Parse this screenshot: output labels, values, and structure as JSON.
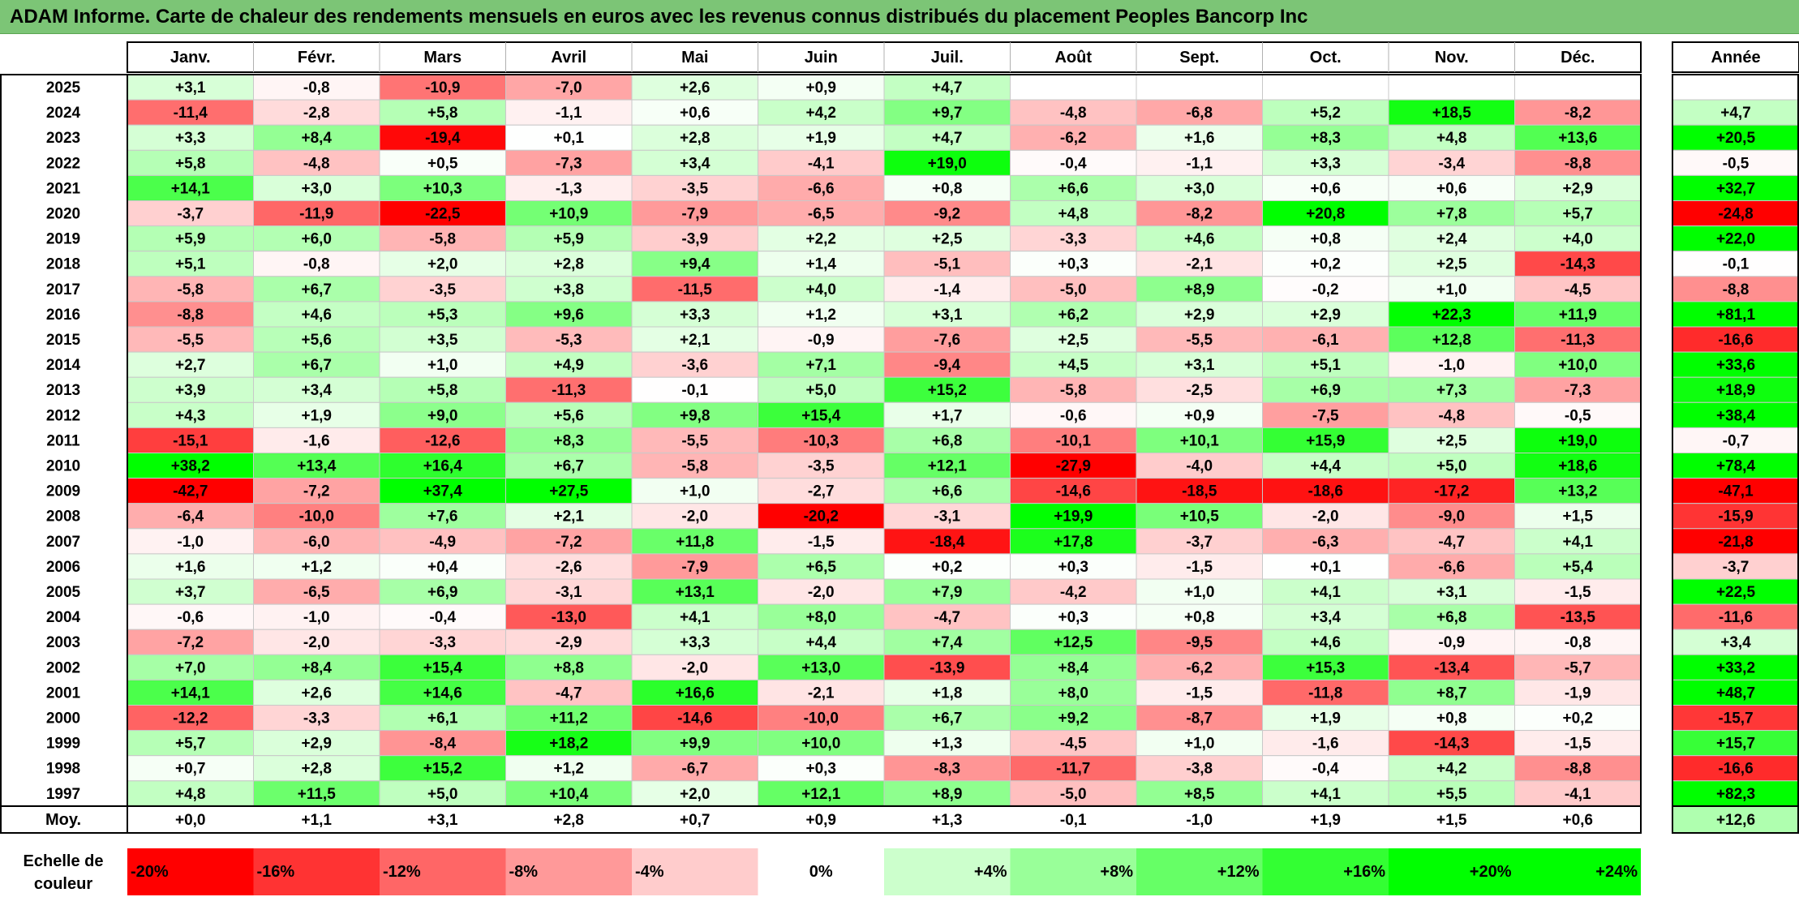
{
  "title": "ADAM Informe. Carte de chaleur des rendements mensuels en euros avec les revenus connus distribués du placement Peoples Bancorp Inc",
  "chart_data": {
    "type": "heatmap",
    "title": "ADAM Informe. Carte de chaleur des rendements mensuels en euros avec les revenus connus distribués du placement Peoples Bancorp Inc",
    "columns": [
      "Janv.",
      "Févr.",
      "Mars",
      "Avril",
      "Mai",
      "Juin",
      "Juil.",
      "Août",
      "Sept.",
      "Oct.",
      "Nov.",
      "Déc."
    ],
    "year_column_label": "Année",
    "rows": [
      {
        "year": "2025",
        "months": [
          "+3,1",
          "-0,8",
          "-10,9",
          "-7,0",
          "+2,6",
          "+0,9",
          "+4,7",
          "",
          "",
          "",
          "",
          ""
        ],
        "annual": ""
      },
      {
        "year": "2024",
        "months": [
          "-11,4",
          "-2,8",
          "+5,8",
          "-1,1",
          "+0,6",
          "+4,2",
          "+9,7",
          "-4,8",
          "-6,8",
          "+5,2",
          "+18,5",
          "-8,2"
        ],
        "annual": "+4,7"
      },
      {
        "year": "2023",
        "months": [
          "+3,3",
          "+8,4",
          "-19,4",
          "+0,1",
          "+2,8",
          "+1,9",
          "+4,7",
          "-6,2",
          "+1,6",
          "+8,3",
          "+4,8",
          "+13,6"
        ],
        "annual": "+20,5"
      },
      {
        "year": "2022",
        "months": [
          "+5,8",
          "-4,8",
          "+0,5",
          "-7,3",
          "+3,4",
          "-4,1",
          "+19,0",
          "-0,4",
          "-1,1",
          "+3,3",
          "-3,4",
          "-8,8"
        ],
        "annual": "-0,5"
      },
      {
        "year": "2021",
        "months": [
          "+14,1",
          "+3,0",
          "+10,3",
          "-1,3",
          "-3,5",
          "-6,6",
          "+0,8",
          "+6,6",
          "+3,0",
          "+0,6",
          "+0,6",
          "+2,9"
        ],
        "annual": "+32,7"
      },
      {
        "year": "2020",
        "months": [
          "-3,7",
          "-11,9",
          "-22,5",
          "+10,9",
          "-7,9",
          "-6,5",
          "-9,2",
          "+4,8",
          "-8,2",
          "+20,8",
          "+7,8",
          "+5,7"
        ],
        "annual": "-24,8"
      },
      {
        "year": "2019",
        "months": [
          "+5,9",
          "+6,0",
          "-5,8",
          "+5,9",
          "-3,9",
          "+2,2",
          "+2,5",
          "-3,3",
          "+4,6",
          "+0,8",
          "+2,4",
          "+4,0"
        ],
        "annual": "+22,0"
      },
      {
        "year": "2018",
        "months": [
          "+5,1",
          "-0,8",
          "+2,0",
          "+2,8",
          "+9,4",
          "+1,4",
          "-5,1",
          "+0,3",
          "-2,1",
          "+0,2",
          "+2,5",
          "-14,3"
        ],
        "annual": "-0,1"
      },
      {
        "year": "2017",
        "months": [
          "-5,8",
          "+6,7",
          "-3,5",
          "+3,8",
          "-11,5",
          "+4,0",
          "-1,4",
          "-5,0",
          "+8,9",
          "-0,2",
          "+1,0",
          "-4,5"
        ],
        "annual": "-8,8"
      },
      {
        "year": "2016",
        "months": [
          "-8,8",
          "+4,6",
          "+5,3",
          "+9,6",
          "+3,3",
          "+1,2",
          "+3,1",
          "+6,2",
          "+2,9",
          "+2,9",
          "+22,3",
          "+11,9"
        ],
        "annual": "+81,1"
      },
      {
        "year": "2015",
        "months": [
          "-5,5",
          "+5,6",
          "+3,5",
          "-5,3",
          "+2,1",
          "-0,9",
          "-7,6",
          "+2,5",
          "-5,5",
          "-6,1",
          "+12,8",
          "-11,3"
        ],
        "annual": "-16,6"
      },
      {
        "year": "2014",
        "months": [
          "+2,7",
          "+6,7",
          "+1,0",
          "+4,9",
          "-3,6",
          "+7,1",
          "-9,4",
          "+4,5",
          "+3,1",
          "+5,1",
          "-1,0",
          "+10,0"
        ],
        "annual": "+33,6"
      },
      {
        "year": "2013",
        "months": [
          "+3,9",
          "+3,4",
          "+5,8",
          "-11,3",
          "-0,1",
          "+5,0",
          "+15,2",
          "-5,8",
          "-2,5",
          "+6,9",
          "+7,3",
          "-7,3"
        ],
        "annual": "+18,9"
      },
      {
        "year": "2012",
        "months": [
          "+4,3",
          "+1,9",
          "+9,0",
          "+5,6",
          "+9,8",
          "+15,4",
          "+1,7",
          "-0,6",
          "+0,9",
          "-7,5",
          "-4,8",
          "-0,5"
        ],
        "annual": "+38,4"
      },
      {
        "year": "2011",
        "months": [
          "-15,1",
          "-1,6",
          "-12,6",
          "+8,3",
          "-5,5",
          "-10,3",
          "+6,8",
          "-10,1",
          "+10,1",
          "+15,9",
          "+2,5",
          "+19,0"
        ],
        "annual": "-0,7"
      },
      {
        "year": "2010",
        "months": [
          "+38,2",
          "+13,4",
          "+16,4",
          "+6,7",
          "-5,8",
          "-3,5",
          "+12,1",
          "-27,9",
          "-4,0",
          "+4,4",
          "+5,0",
          "+18,6"
        ],
        "annual": "+78,4"
      },
      {
        "year": "2009",
        "months": [
          "-42,7",
          "-7,2",
          "+37,4",
          "+27,5",
          "+1,0",
          "-2,7",
          "+6,6",
          "-14,6",
          "-18,5",
          "-18,6",
          "-17,2",
          "+13,2"
        ],
        "annual": "-47,1"
      },
      {
        "year": "2008",
        "months": [
          "-6,4",
          "-10,0",
          "+7,6",
          "+2,1",
          "-2,0",
          "-20,2",
          "-3,1",
          "+19,9",
          "+10,5",
          "-2,0",
          "-9,0",
          "+1,5"
        ],
        "annual": "-15,9"
      },
      {
        "year": "2007",
        "months": [
          "-1,0",
          "-6,0",
          "-4,9",
          "-7,2",
          "+11,8",
          "-1,5",
          "-18,4",
          "+17,8",
          "-3,7",
          "-6,3",
          "-4,7",
          "+4,1"
        ],
        "annual": "-21,8"
      },
      {
        "year": "2006",
        "months": [
          "+1,6",
          "+1,2",
          "+0,4",
          "-2,6",
          "-7,9",
          "+6,5",
          "+0,2",
          "+0,3",
          "-1,5",
          "+0,1",
          "-6,6",
          "+5,4"
        ],
        "annual": "-3,7"
      },
      {
        "year": "2005",
        "months": [
          "+3,7",
          "-6,5",
          "+6,9",
          "-3,1",
          "+13,1",
          "-2,0",
          "+7,9",
          "-4,2",
          "+1,0",
          "+4,1",
          "+3,1",
          "-1,5"
        ],
        "annual": "+22,5"
      },
      {
        "year": "2004",
        "months": [
          "-0,6",
          "-1,0",
          "-0,4",
          "-13,0",
          "+4,1",
          "+8,0",
          "-4,7",
          "+0,3",
          "+0,8",
          "+3,4",
          "+6,8",
          "-13,5"
        ],
        "annual": "-11,6"
      },
      {
        "year": "2003",
        "months": [
          "-7,2",
          "-2,0",
          "-3,3",
          "-2,9",
          "+3,3",
          "+4,4",
          "+7,4",
          "+12,5",
          "-9,5",
          "+4,6",
          "-0,9",
          "-0,8"
        ],
        "annual": "+3,4"
      },
      {
        "year": "2002",
        "months": [
          "+7,0",
          "+8,4",
          "+15,4",
          "+8,8",
          "-2,0",
          "+13,0",
          "-13,9",
          "+8,4",
          "-6,2",
          "+15,3",
          "-13,4",
          "-5,7"
        ],
        "annual": "+33,2"
      },
      {
        "year": "2001",
        "months": [
          "+14,1",
          "+2,6",
          "+14,6",
          "-4,7",
          "+16,6",
          "-2,1",
          "+1,8",
          "+8,0",
          "-1,5",
          "-11,8",
          "+8,7",
          "-1,9"
        ],
        "annual": "+48,7"
      },
      {
        "year": "2000",
        "months": [
          "-12,2",
          "-3,3",
          "+6,1",
          "+11,2",
          "-14,6",
          "-10,0",
          "+6,7",
          "+9,2",
          "-8,7",
          "+1,9",
          "+0,8",
          "+0,2"
        ],
        "annual": "-15,7"
      },
      {
        "year": "1999",
        "months": [
          "+5,7",
          "+2,9",
          "-8,4",
          "+18,2",
          "+9,9",
          "+10,0",
          "+1,3",
          "-4,5",
          "+1,0",
          "-1,6",
          "-14,3",
          "-1,5"
        ],
        "annual": "+15,7"
      },
      {
        "year": "1998",
        "months": [
          "+0,7",
          "+2,8",
          "+15,2",
          "+1,2",
          "-6,7",
          "+0,3",
          "-8,3",
          "-11,7",
          "-3,8",
          "-0,4",
          "+4,2",
          "-8,8"
        ],
        "annual": "-16,6"
      },
      {
        "year": "1997",
        "months": [
          "+4,8",
          "+11,5",
          "+5,0",
          "+10,4",
          "+2,0",
          "+12,1",
          "+8,9",
          "-5,0",
          "+8,5",
          "+4,1",
          "+5,5",
          "-4,1"
        ],
        "annual": "+82,3"
      }
    ],
    "average": {
      "label": "Moy.",
      "months": [
        "+0,0",
        "+1,1",
        "+3,1",
        "+2,8",
        "+0,7",
        "+0,9",
        "+1,3",
        "-0,1",
        "-1,0",
        "+1,9",
        "+1,5",
        "+0,6"
      ],
      "annual": "+12,6"
    },
    "color_scale": {
      "label_line1": "Echelle de",
      "label_line2": "couleur",
      "stops": [
        "-20%",
        "-16%",
        "-12%",
        "-8%",
        "-4%",
        "0%",
        "+4%",
        "+8%",
        "+12%",
        "+16%",
        "+20%",
        "+24%"
      ]
    },
    "colors": {
      "negative_max": "#ff0000",
      "neutral": "#ffffff",
      "positive_max": "#00ff00",
      "title_bar": "#7cc576"
    }
  }
}
